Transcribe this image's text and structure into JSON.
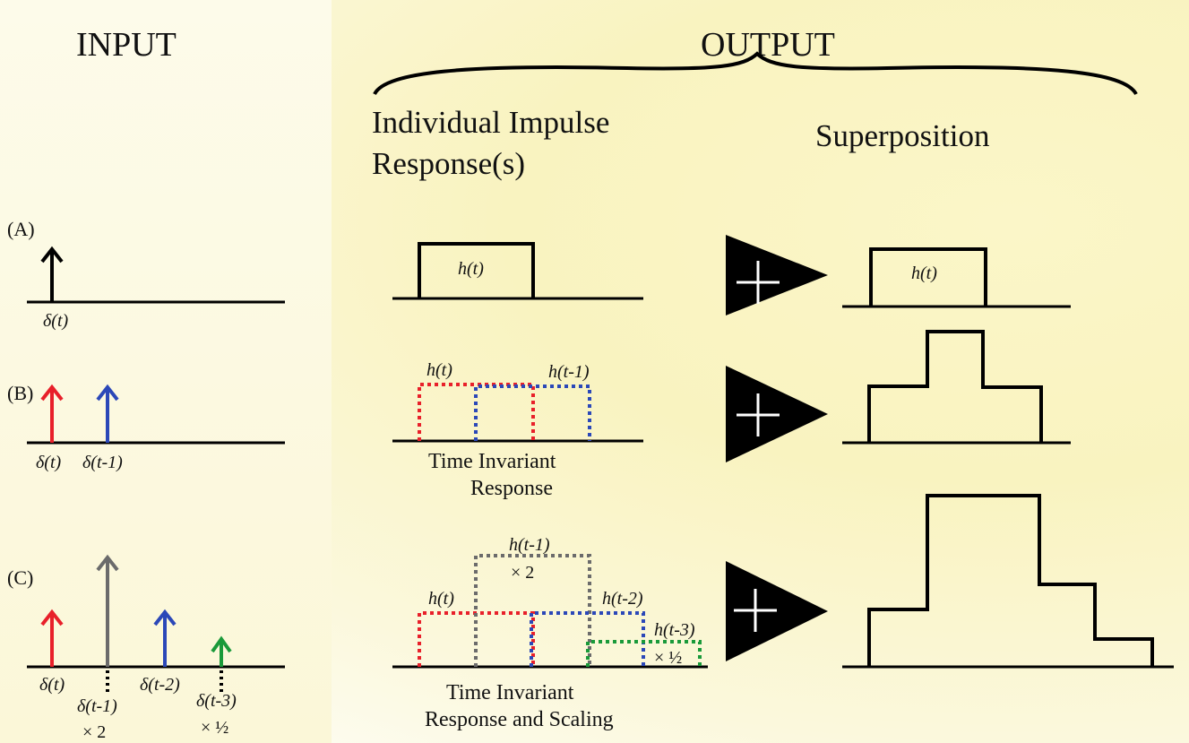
{
  "headers": {
    "input": "INPUT",
    "output": "OUTPUT",
    "individual_line1": "Individual Impulse",
    "individual_line2": "Response(s)",
    "superposition": "Superposition"
  },
  "rows": {
    "a": {
      "label": "(A)",
      "input_labels": [
        "δ(t)"
      ],
      "response_label": "h(t)",
      "sum_label": "h(t)"
    },
    "b": {
      "label": "(B)",
      "input_labels": [
        "δ(t)",
        "δ(t-1)"
      ],
      "response_labels": [
        "h(t)",
        "h(t-1)"
      ],
      "caption_line1": "Time Invariant",
      "caption_line2": "Response"
    },
    "c": {
      "label": "(C)",
      "input_labels": [
        "δ(t)",
        "δ(t-1)",
        "δ(t-2)",
        "δ(t-3)"
      ],
      "input_scales": [
        "× 2",
        "× ½"
      ],
      "response_labels": [
        "h(t)",
        "h(t-1)",
        "h(t-2)",
        "h(t-3)"
      ],
      "response_scales": [
        "× 2",
        "× ½"
      ],
      "caption_line1": "Time Invariant",
      "caption_line2": "Response and Scaling"
    }
  },
  "colors": {
    "t0": "#e8202a",
    "t1_b": "#2b48b8",
    "t1_c": "#6b6b6b",
    "t2": "#2b48b8",
    "t3": "#1a9a3a",
    "ink": "#000000"
  }
}
